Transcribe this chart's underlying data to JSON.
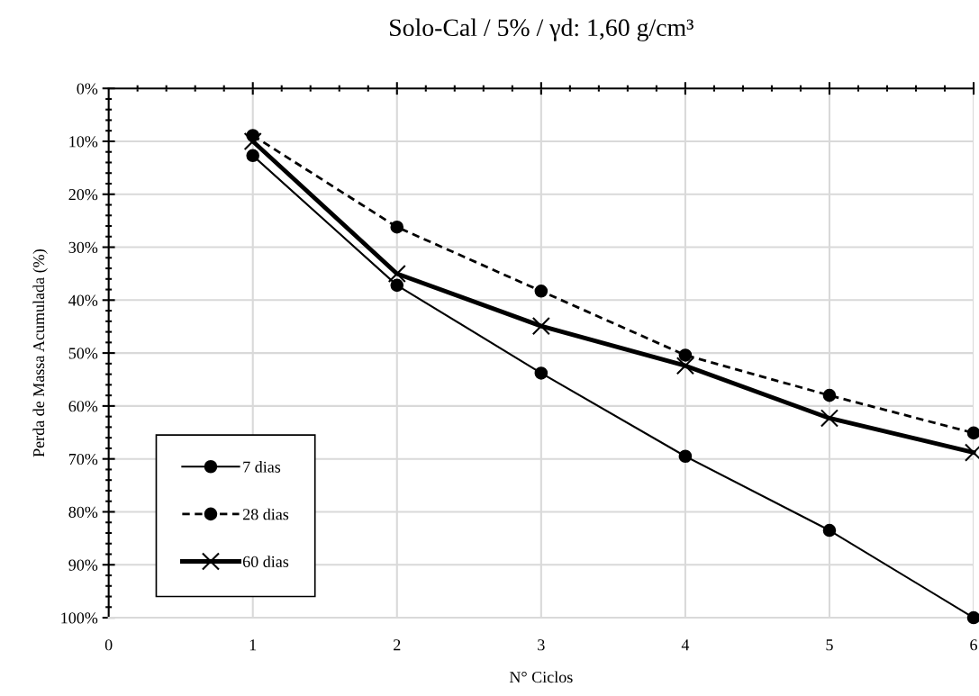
{
  "chart_data": {
    "type": "line",
    "title": "Solo-Cal / 5% / γd: 1,60 g/cm³",
    "xlabel": "N° Ciclos",
    "ylabel": "Perda de Massa Acumulada (%)",
    "x": [
      1,
      2,
      3,
      4,
      5,
      6
    ],
    "series": [
      {
        "name": "7 dias",
        "color": "#000000",
        "marker": "circle",
        "line_style": "solid",
        "values": [
          12.7,
          37.2,
          53.8,
          69.5,
          83.5,
          100
        ]
      },
      {
        "name": "28 dias",
        "color": "#000000",
        "marker": "circle",
        "line_style": "dashed",
        "values": [
          8.9,
          26.2,
          38.3,
          50.4,
          58.0,
          65.1
        ]
      },
      {
        "name": "60 dias",
        "color": "#000000",
        "marker": "cross",
        "line_style": "solid",
        "values": [
          10.0,
          35.0,
          44.9,
          52.4,
          62.3,
          68.8
        ]
      }
    ],
    "xlim": [
      0,
      6
    ],
    "xticks": [
      0,
      1,
      2,
      3,
      4,
      5,
      6
    ],
    "ylim": [
      100,
      0
    ],
    "yticks": [
      {
        "value": 0,
        "label": "0%"
      },
      {
        "value": 10,
        "label": "10%"
      },
      {
        "value": 20,
        "label": "20%"
      },
      {
        "value": 30,
        "label": "30%"
      },
      {
        "value": 40,
        "label": "40%"
      },
      {
        "value": 50,
        "label": "50%"
      },
      {
        "value": 60,
        "label": "60%"
      },
      {
        "value": 70,
        "label": "70%"
      },
      {
        "value": 80,
        "label": "80%"
      },
      {
        "value": 90,
        "label": "90%"
      },
      {
        "value": 100,
        "label": "100%"
      }
    ],
    "grid": true,
    "legend": "bottom left"
  }
}
